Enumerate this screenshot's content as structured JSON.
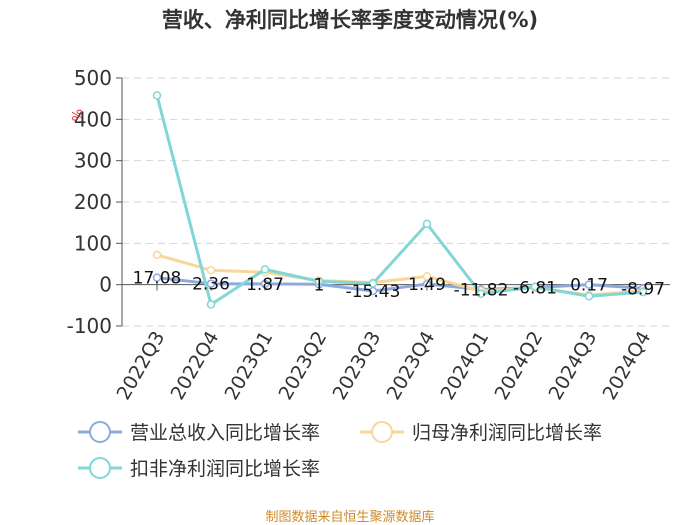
{
  "chart_data": {
    "type": "line",
    "title": "营收、净利同比增长率季度变动情况(%)",
    "ylabel": "%",
    "ylim": [
      -100,
      500
    ],
    "yticks": [
      -100,
      0,
      100,
      200,
      300,
      400,
      500
    ],
    "grid": true,
    "legend_position": "bottom",
    "categories": [
      "2022Q3",
      "2022Q4",
      "2023Q1",
      "2023Q2",
      "2023Q3",
      "2023Q4",
      "2024Q1",
      "2024Q2",
      "2024Q3",
      "2024Q4"
    ],
    "series": [
      {
        "name": "营业总收入同比增长率",
        "color": "#8eaadb",
        "values": [
          17.08,
          2.36,
          1.87,
          1,
          -15.43,
          1.49,
          -11.82,
          -6.81,
          0.17,
          -8.97
        ],
        "labels": [
          "17.08",
          "2.36",
          "1.87",
          "1",
          "-15.43",
          "1.49",
          "-11.82",
          "-6.81",
          "0.17",
          "-8.97"
        ]
      },
      {
        "name": "归母净利润同比增长率",
        "color": "#f9d79a",
        "values": [
          72,
          35,
          30,
          10,
          5,
          20,
          -15,
          -8,
          -25,
          -15
        ]
      },
      {
        "name": "扣非净利润同比增长率",
        "color": "#82d6d6",
        "values": [
          458,
          -48,
          37,
          8,
          3,
          147,
          -22,
          -5,
          -28,
          -18
        ]
      }
    ]
  },
  "source_text": "制图数据来自恒生聚源数据库"
}
